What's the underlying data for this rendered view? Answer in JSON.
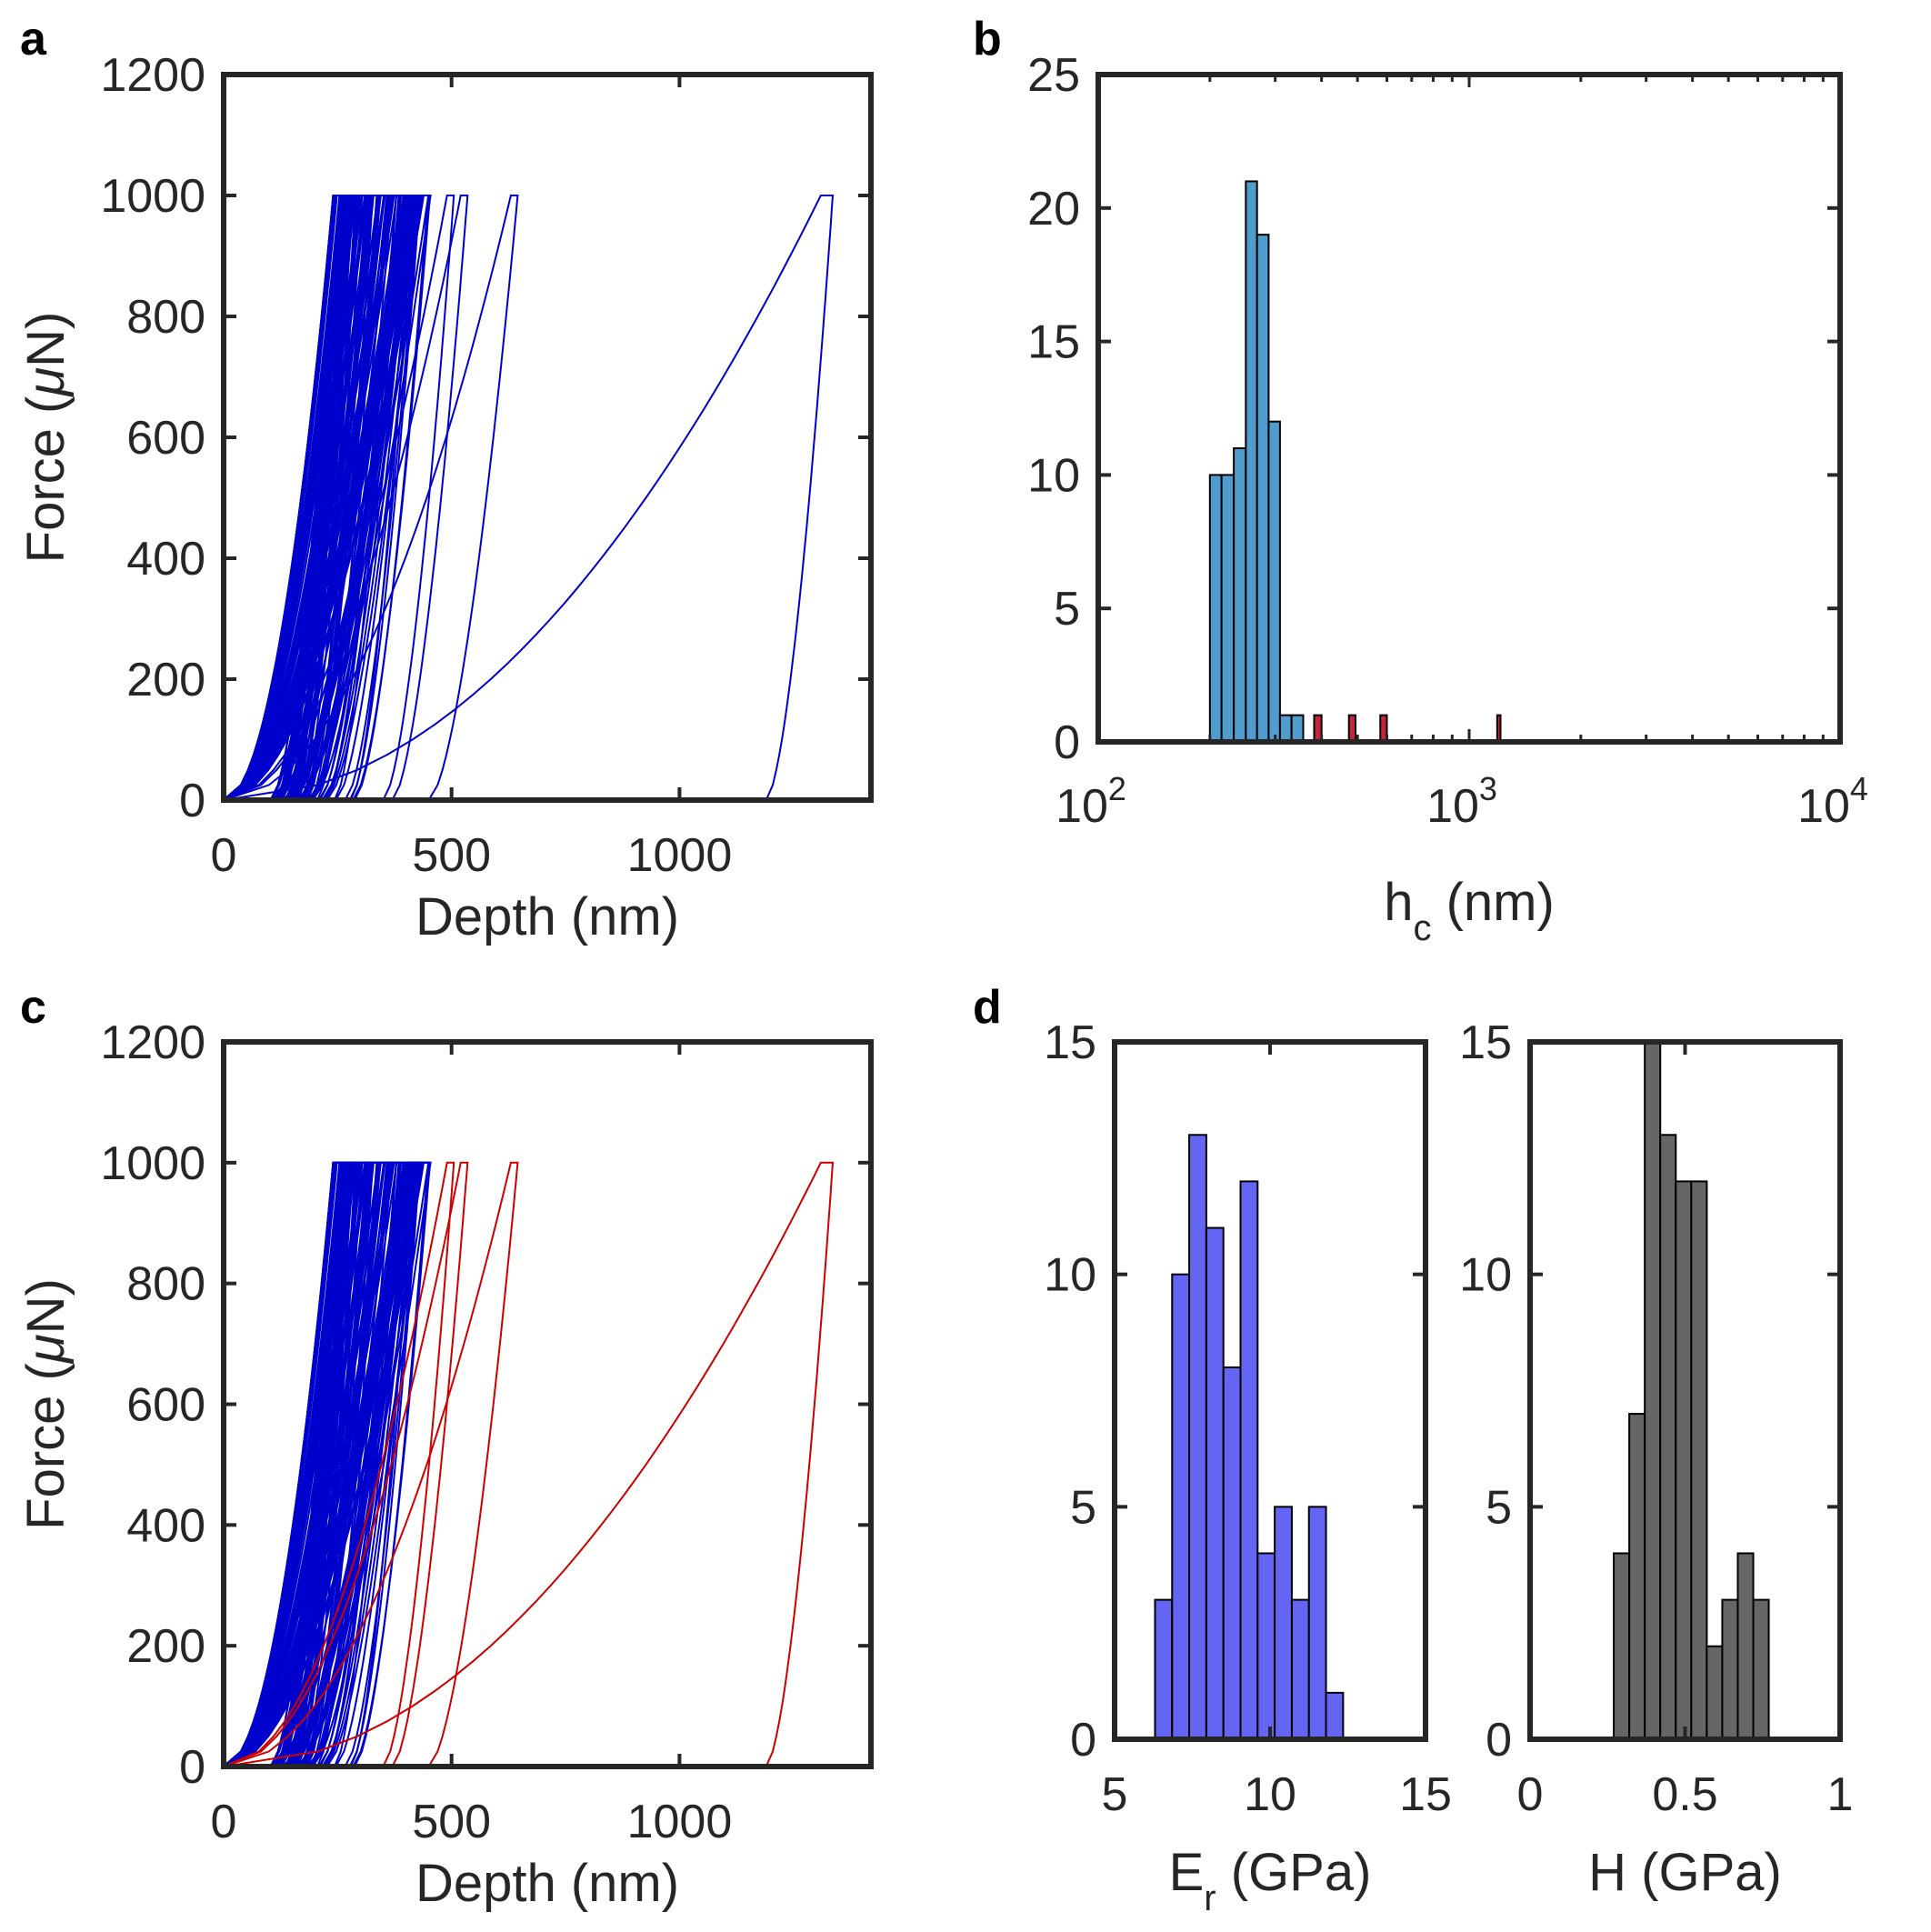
{
  "panels": {
    "a": "a",
    "b": "b",
    "c": "c",
    "d": "d"
  },
  "chart_data": [
    {
      "id": "a",
      "type": "line",
      "title": "",
      "xlabel": "Depth (nm)",
      "ylabel_main": "Force (",
      "ylabel_mu": "μ",
      "ylabel_unit": "N)",
      "xlim": [
        0,
        1420
      ],
      "ylim": [
        0,
        1200
      ],
      "xticks": [
        0,
        500,
        1000
      ],
      "yticks": [
        0,
        200,
        400,
        600,
        800,
        1000,
        1200
      ],
      "peak_force": 1000,
      "colors": {
        "normal": "#0000cc",
        "outlier": "#0000cc"
      },
      "normal_curves": {
        "count": 95,
        "peak_depth_range": [
          240,
          440
        ],
        "final_depth_range": [
          100,
          300
        ]
      },
      "outlier_curves": [
        {
          "peak_depth": 490,
          "final_depth": 350
        },
        {
          "peak_depth": 520,
          "final_depth": 370
        },
        {
          "peak_depth": 630,
          "final_depth": 450
        },
        {
          "peak_depth": 1310,
          "final_depth": 1190
        }
      ]
    },
    {
      "id": "b",
      "type": "bar",
      "title": "",
      "xlabel_main": "h",
      "xlabel_sub": "c",
      "xlabel_unit": " (nm)",
      "xscale": "log",
      "xlim": [
        100,
        10000
      ],
      "ylim": [
        0,
        25
      ],
      "yticks": [
        0,
        5,
        10,
        15,
        20,
        25
      ],
      "xticks": [
        {
          "base": "10",
          "exp": "2"
        },
        {
          "base": "10",
          "exp": "3"
        },
        {
          "base": "10",
          "exp": "4"
        }
      ],
      "bin_edges": [
        200,
        215,
        232,
        250,
        268,
        288,
        309,
        332,
        357
      ],
      "counts": [
        10,
        10,
        11,
        21,
        19,
        12,
        1,
        1
      ],
      "outlier_bins": [
        {
          "edges": [
            382,
            400
          ],
          "count": 1
        },
        {
          "edges": [
            474,
            494
          ],
          "count": 1
        },
        {
          "edges": [
            576,
            600
          ],
          "count": 1
        },
        {
          "edges": [
            1190,
            1215
          ],
          "count": 1
        }
      ],
      "colors": {
        "main": "#4f9ccd",
        "outlier": "#c3263b"
      }
    },
    {
      "id": "c",
      "type": "line",
      "title": "",
      "xlabel": "Depth (nm)",
      "ylabel_main": "Force (",
      "ylabel_mu": "μ",
      "ylabel_unit": "N)",
      "xlim": [
        0,
        1420
      ],
      "ylim": [
        0,
        1200
      ],
      "xticks": [
        0,
        500,
        1000
      ],
      "yticks": [
        0,
        200,
        400,
        600,
        800,
        1000,
        1200
      ],
      "peak_force": 1000,
      "colors": {
        "normal": "#0000cc",
        "outlier": "#cc0000"
      },
      "normal_curves": {
        "count": 95,
        "peak_depth_range": [
          240,
          440
        ],
        "final_depth_range": [
          100,
          300
        ]
      },
      "outlier_curves": [
        {
          "peak_depth": 490,
          "final_depth": 350
        },
        {
          "peak_depth": 520,
          "final_depth": 370
        },
        {
          "peak_depth": 630,
          "final_depth": 450
        },
        {
          "peak_depth": 1310,
          "final_depth": 1190
        }
      ]
    },
    {
      "id": "d1",
      "type": "bar",
      "title": "",
      "xlabel_main": "E",
      "xlabel_sub": "r",
      "xlabel_unit": " (GPa)",
      "xlim": [
        5,
        15
      ],
      "ylim": [
        0,
        15
      ],
      "xticks": [
        5,
        10,
        15
      ],
      "yticks": [
        0,
        5,
        10,
        15
      ],
      "bin_start": 6.3,
      "bin_width": 0.55,
      "counts": [
        3,
        10,
        13,
        11,
        8,
        12,
        4,
        5,
        3,
        5,
        1
      ],
      "colors": {
        "main": "#6465f2"
      }
    },
    {
      "id": "d2",
      "type": "bar",
      "title": "",
      "xlabel": "H (GPa)",
      "xlim": [
        0,
        1
      ],
      "ylim": [
        0,
        15
      ],
      "xticks": [
        0,
        0.5,
        1
      ],
      "yticks": [
        0,
        5,
        10,
        15
      ],
      "bin_start": 0.27,
      "bin_width": 0.05,
      "counts": [
        4,
        7,
        15,
        13,
        12,
        12,
        2,
        3,
        4,
        3
      ],
      "colors": {
        "main": "#666666"
      }
    }
  ]
}
